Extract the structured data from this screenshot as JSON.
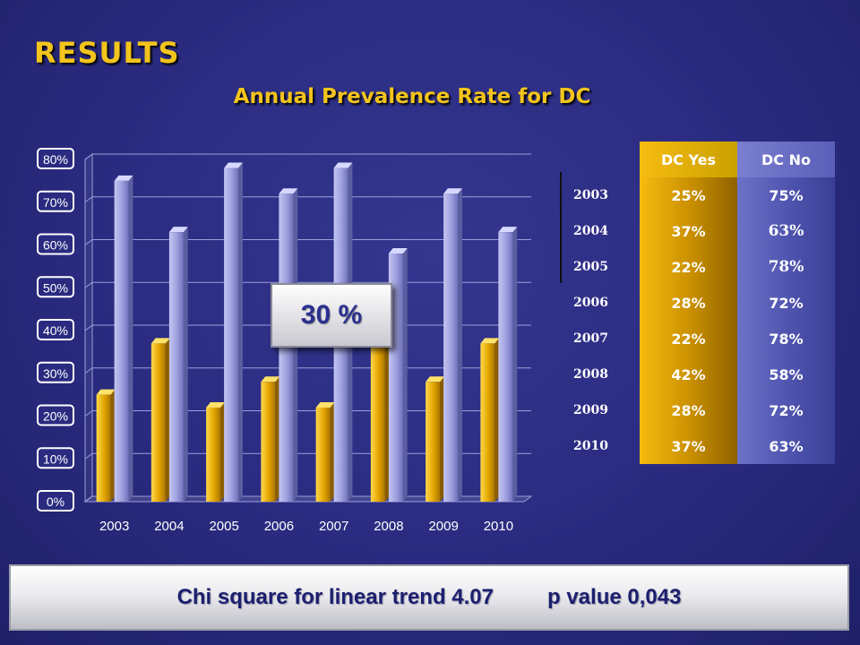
{
  "title": "RESULTS",
  "subtitle": "Annual Prevalence Rate for DC",
  "callout": "30 %",
  "table": {
    "headers": [
      "DC Yes",
      "DC No"
    ],
    "years": [
      "2003",
      "2004",
      "2005",
      "2006",
      "2007",
      "2008",
      "2009",
      "2010"
    ],
    "rows": [
      [
        "25%",
        "75%"
      ],
      [
        "37%",
        "63%"
      ],
      [
        "22%",
        "78%"
      ],
      [
        "28%",
        "72%"
      ],
      [
        "22%",
        "78%"
      ],
      [
        "42%",
        "58%"
      ],
      [
        "28%",
        "72%"
      ],
      [
        "37%",
        "63%"
      ]
    ]
  },
  "footer": {
    "test_label": "Chi square for linear trend  4.07",
    "p_label": "p value  0,043"
  },
  "chart_data": {
    "type": "bar",
    "categories": [
      "2003",
      "2004",
      "2005",
      "2006",
      "2007",
      "2008",
      "2009",
      "2010"
    ],
    "series": [
      {
        "name": "DC Yes",
        "values": [
          25,
          37,
          22,
          28,
          22,
          42,
          28,
          37
        ],
        "color": "#f3b80c"
      },
      {
        "name": "DC No",
        "values": [
          75,
          63,
          78,
          72,
          78,
          58,
          72,
          63
        ],
        "color": "#a4a6e2"
      }
    ],
    "yticks": [
      "0%",
      "10%",
      "20%",
      "30%",
      "40%",
      "50%",
      "60%",
      "70%",
      "80%"
    ],
    "ylim": [
      0,
      80
    ],
    "grid": true
  }
}
